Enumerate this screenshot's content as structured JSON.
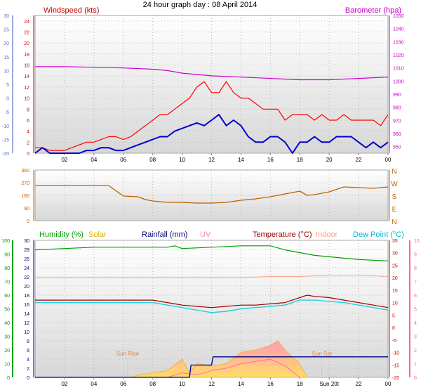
{
  "page_title": "24 hour graph day : 08 April 2014",
  "colors": {
    "wind": "#ff0000",
    "gust": "#0000cc",
    "baro": "#cc00cc",
    "wind_axis": "#a0a8e0",
    "baro_axis": "#cc00cc",
    "winddir": "#c06000",
    "humidity": "#00a000",
    "solar": "#ffcc44",
    "rain": "#000080",
    "uv": "#ff66cc",
    "temp": "#a00000",
    "indoor": "#ffa080",
    "dewpoint": "#20d0e0",
    "temp_right": "#ff6699"
  },
  "chart_data": [
    {
      "type": "line",
      "id": "wind-baro",
      "title": "24 hour graph day : 08 April 2014",
      "xticks": [
        "02",
        "04",
        "06",
        "08",
        "10",
        "12",
        "14",
        "16",
        "18",
        "20",
        "22",
        "00"
      ],
      "legend": [
        {
          "label": "Windspeed (kts)",
          "color": "#cc0000"
        },
        {
          "label": "Barometer (hpa)",
          "color": "#cc00cc"
        }
      ],
      "y_left_outer": {
        "ticks": [
          "30",
          "25",
          "20",
          "15",
          "10",
          "5",
          "0",
          "-5",
          "-10",
          "-15",
          "-20"
        ],
        "ylim": [
          -20,
          30
        ]
      },
      "y_left_inner": {
        "ticks": [
          "24",
          "22",
          "20",
          "18",
          "16",
          "14",
          "12",
          "10",
          "8",
          "6",
          "4",
          "2",
          "0"
        ],
        "ylim": [
          0,
          25
        ]
      },
      "y_right": {
        "ticks": [
          "1050",
          "1040",
          "1030",
          "1020",
          "1010",
          "1000",
          "990",
          "980",
          "970",
          "960",
          "950"
        ],
        "ylim": [
          945,
          1050
        ]
      },
      "series": [
        {
          "name": "Barometer (hpa)",
          "axis": "right",
          "x": [
            0,
            2,
            4,
            6,
            8,
            9,
            10,
            12,
            14,
            16,
            18,
            20,
            22,
            24
          ],
          "y": [
            1011,
            1011,
            1010.5,
            1010,
            1009,
            1008,
            1006,
            1004,
            1003,
            1002,
            1001,
            1001,
            1002,
            1003
          ]
        },
        {
          "name": "Windspeed (kts)",
          "axis": "left_inner",
          "x": [
            0,
            0.5,
            1,
            1.5,
            2,
            2.5,
            3,
            3.5,
            4,
            4.5,
            5,
            5.5,
            6,
            6.5,
            7,
            7.5,
            8,
            8.5,
            9,
            9.5,
            10,
            10.5,
            11,
            11.5,
            12,
            12.5,
            13,
            13.5,
            14,
            14.5,
            15,
            15.5,
            16,
            16.5,
            17,
            17.5,
            18,
            18.5,
            19,
            19.5,
            20,
            20.5,
            21,
            21.5,
            22,
            22.5,
            23,
            23.5,
            24
          ],
          "y": [
            1,
            1,
            0.5,
            0.5,
            0.5,
            1,
            1.5,
            2,
            2,
            2.5,
            3,
            3,
            2.5,
            3,
            4,
            5,
            6,
            7,
            7,
            8,
            9,
            10,
            12,
            13,
            11,
            11,
            13,
            11,
            10,
            10,
            9,
            8,
            8,
            8,
            6,
            7,
            7,
            7,
            6,
            7,
            6,
            6,
            7,
            6,
            6,
            6,
            6,
            5,
            7
          ]
        },
        {
          "name": "Gust",
          "axis": "left_inner",
          "x": [
            0,
            0.5,
            1,
            1.5,
            2,
            2.5,
            3,
            3.5,
            4,
            4.5,
            5,
            5.5,
            6,
            6.5,
            7,
            7.5,
            8,
            8.5,
            9,
            9.5,
            10,
            10.5,
            11,
            11.5,
            12,
            12.5,
            13,
            13.5,
            14,
            14.5,
            15,
            15.5,
            16,
            16.5,
            17,
            17.5,
            18,
            18.5,
            19,
            19.5,
            20,
            20.5,
            21,
            21.5,
            22,
            22.5,
            23,
            23.5,
            24
          ],
          "y": [
            0,
            1,
            0,
            0,
            0,
            0,
            0,
            0.5,
            0.5,
            1,
            1,
            0.5,
            0.5,
            1,
            1.5,
            2,
            2.5,
            3,
            3,
            4,
            4.5,
            5,
            5.5,
            5,
            6,
            7,
            5,
            6,
            5,
            3,
            2,
            2,
            3,
            3,
            2,
            0,
            2,
            2,
            3,
            2,
            2,
            3,
            3,
            3,
            2,
            1,
            2,
            1,
            2
          ]
        }
      ]
    },
    {
      "type": "line",
      "id": "wind-direction",
      "y_left": {
        "ticks": [
          "360",
          "270",
          "180",
          "90",
          "0"
        ],
        "ylim": [
          0,
          360
        ]
      },
      "y_right": {
        "ticks": [
          "N",
          "W",
          "S",
          "E",
          "N"
        ]
      },
      "series": [
        {
          "name": "Wind direction",
          "x": [
            0,
            1,
            2,
            3,
            4,
            5,
            6,
            7,
            7.5,
            8,
            9,
            10,
            11,
            12,
            13,
            14,
            15,
            16,
            17,
            18,
            18.5,
            19,
            20,
            21,
            22,
            23,
            24
          ],
          "y": [
            250,
            250,
            250,
            250,
            250,
            250,
            175,
            170,
            150,
            140,
            130,
            130,
            125,
            125,
            130,
            145,
            155,
            170,
            190,
            210,
            180,
            185,
            205,
            240,
            235,
            230,
            240
          ]
        }
      ]
    },
    {
      "type": "area",
      "id": "climate",
      "legend": [
        {
          "label": "Humidity (%)",
          "color": "#00a000"
        },
        {
          "label": "Solar",
          "color": "#e0b000"
        },
        {
          "label": "Rainfall (mm)",
          "color": "#000080"
        },
        {
          "label": "UV",
          "color": "#ff80c0"
        },
        {
          "label": "Temperature (°C)",
          "color": "#a00000"
        },
        {
          "label": "Indoor",
          "color": "#ffa080"
        },
        {
          "label": "Dew Point (°C)",
          "color": "#00b8d8"
        }
      ],
      "annotations": [
        "Sun Rise",
        "Sun Set"
      ],
      "xticks": [
        "02",
        "04",
        "06",
        "08",
        "10",
        "12",
        "14",
        "16",
        "18",
        "Sun 20t",
        "22",
        "00"
      ],
      "y_humidity": {
        "ticks": [
          "100",
          "90",
          "80",
          "70",
          "60",
          "50",
          "40",
          "30",
          "20",
          "10",
          "0"
        ],
        "ylim": [
          0,
          100
        ]
      },
      "y_rain": {
        "ticks": [
          "30",
          "28",
          "26",
          "24",
          "22",
          "20",
          "18",
          "16",
          "14",
          "12",
          "10",
          "8",
          "6",
          "4",
          "2",
          "0"
        ],
        "ylim": [
          0,
          30
        ]
      },
      "y_temp": {
        "ticks": [
          "35",
          "30",
          "25",
          "20",
          "15",
          "10",
          "5",
          "0",
          "-5",
          "-10",
          "-15",
          "-20"
        ],
        "ylim": [
          -20,
          35
        ]
      },
      "y_uv": {
        "ticks": [
          "10",
          "9",
          "8",
          "7",
          "6",
          "5",
          "4",
          "3",
          "2",
          "1",
          "0"
        ],
        "ylim": [
          0,
          10
        ]
      },
      "series": [
        {
          "name": "Humidity (%)",
          "axis": "humidity",
          "x": [
            0,
            2,
            4,
            6,
            8,
            9,
            9.5,
            10,
            12,
            14,
            15,
            16,
            17,
            18,
            19,
            20,
            22,
            24
          ],
          "y": [
            93,
            94,
            95,
            95,
            95,
            95,
            96,
            94,
            95,
            96,
            96,
            96,
            93,
            91,
            89,
            88,
            86,
            85
          ]
        },
        {
          "name": "Indoor",
          "axis": "temp",
          "x": [
            0,
            2,
            4,
            6,
            8,
            10,
            12,
            14,
            16,
            18,
            20,
            22,
            24
          ],
          "y": [
            20,
            20,
            20,
            20,
            20,
            20,
            20,
            20,
            20.5,
            20.5,
            21,
            21,
            20.5
          ]
        },
        {
          "name": "Temperature (°C)",
          "axis": "temp",
          "x": [
            0,
            2,
            4,
            6,
            8,
            9,
            10,
            11,
            12,
            13,
            14,
            15,
            16,
            17,
            18,
            18.5,
            19,
            20,
            21,
            22,
            23,
            24
          ],
          "y": [
            11,
            11,
            11,
            11,
            11,
            10,
            9,
            8.5,
            8,
            8.5,
            9,
            9,
            9.5,
            10,
            12,
            13,
            12.5,
            12,
            11,
            10,
            9,
            8
          ]
        },
        {
          "name": "Dew Point (°C)",
          "axis": "temp",
          "x": [
            0,
            2,
            4,
            6,
            8,
            9,
            10,
            11,
            12,
            13,
            14,
            15,
            16,
            17,
            18,
            19,
            20,
            21,
            22,
            23,
            24
          ],
          "y": [
            10,
            10,
            10,
            10,
            10,
            9,
            8,
            7,
            6,
            6.5,
            7.5,
            8,
            8.5,
            9,
            11,
            11,
            10.5,
            10,
            9,
            8,
            7
          ]
        },
        {
          "name": "Rainfall (mm)",
          "axis": "rain",
          "x": [
            0,
            9,
            10.5,
            10.6,
            12,
            12.1,
            24
          ],
          "y": [
            0,
            0,
            0,
            2.7,
            2.7,
            4.5,
            4.5
          ]
        },
        {
          "name": "Solar",
          "axis": "rain",
          "x": [
            6.5,
            7,
            8,
            9,
            10,
            10.5,
            11,
            12,
            13,
            14,
            15,
            16,
            16.5,
            17,
            18,
            18.5
          ],
          "y": [
            0,
            0.5,
            1,
            1.5,
            4,
            1,
            3,
            2.5,
            3,
            5.5,
            6,
            7,
            8,
            6,
            3,
            0
          ]
        },
        {
          "name": "UV",
          "axis": "rain",
          "x": [
            9,
            10,
            11,
            12,
            13,
            14,
            15,
            16,
            17,
            18
          ],
          "y": [
            0,
            1,
            0.5,
            1.5,
            2,
            3,
            3.5,
            4,
            2.5,
            0
          ]
        }
      ]
    }
  ]
}
